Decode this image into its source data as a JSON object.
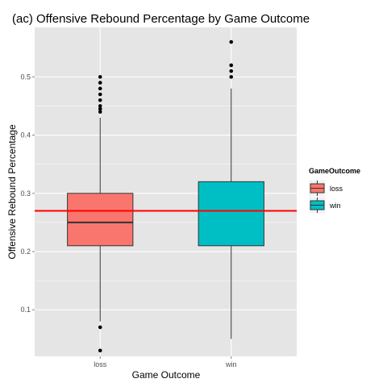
{
  "chart_data": {
    "type": "boxplot",
    "title": "(ac) Offensive Rebound Percentage by Game Outcome",
    "xlabel": "Game Outcome",
    "ylabel": "Offensive Rebound Percentage",
    "ylim": [
      0.02,
      0.585
    ],
    "y_ticks": [
      0.1,
      0.2,
      0.3,
      0.4,
      0.5
    ],
    "y_tick_labels": [
      "0.1",
      "0.2",
      "0.3",
      "0.4",
      "0.5"
    ],
    "categories": [
      "loss",
      "win"
    ],
    "grid": true,
    "legend": {
      "title": "GameOutcome",
      "position": "right",
      "entries": [
        "loss",
        "win"
      ]
    },
    "colors": {
      "loss": "#f8766d",
      "win": "#00bfc4",
      "reference_line": "#ff0000",
      "panel": "#e5e5e5",
      "grid": "#ffffff"
    },
    "boxes": [
      {
        "category": "loss",
        "min": 0.08,
        "q1": 0.21,
        "median": 0.25,
        "q3": 0.3,
        "max": 0.43,
        "outliers": [
          0.44,
          0.445,
          0.45,
          0.46,
          0.47,
          0.48,
          0.49,
          0.5,
          0.07,
          0.03
        ]
      },
      {
        "category": "win",
        "min": 0.05,
        "q1": 0.21,
        "median": 0.27,
        "q3": 0.32,
        "max": 0.48,
        "outliers": [
          0.5,
          0.51,
          0.52,
          0.56
        ]
      }
    ],
    "reference_line": {
      "y": 0.27
    }
  }
}
